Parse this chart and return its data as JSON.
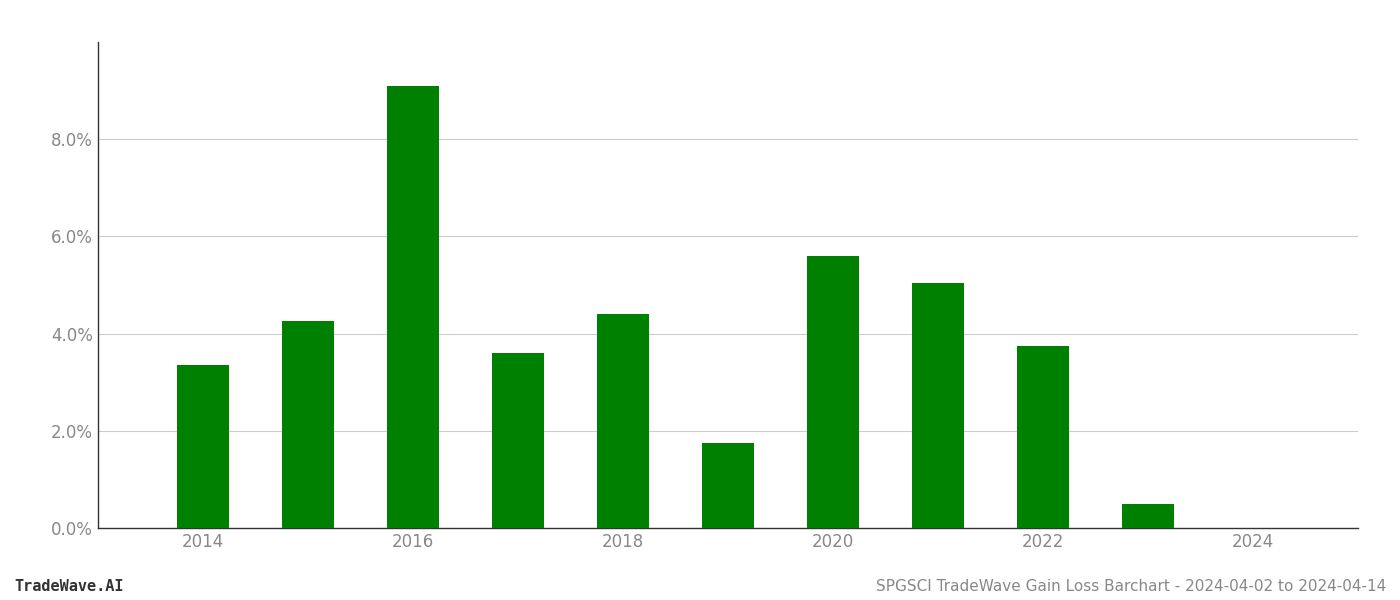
{
  "years": [
    2014,
    2015,
    2016,
    2017,
    2018,
    2019,
    2020,
    2021,
    2022,
    2023,
    2024
  ],
  "values": [
    0.0335,
    0.0425,
    0.091,
    0.036,
    0.044,
    0.0175,
    0.056,
    0.0505,
    0.0375,
    0.005,
    0.0
  ],
  "bar_color": "#008000",
  "background_color": "#ffffff",
  "title": "SPGSCI TradeWave Gain Loss Barchart - 2024-04-02 to 2024-04-14",
  "watermark": "TradeWave.AI",
  "ylim_min": 0.0,
  "ylim_max": 0.1,
  "ytick_values": [
    0.0,
    0.02,
    0.04,
    0.06,
    0.08
  ],
  "ytick_labels": [
    "0.0%",
    "2.0%",
    "4.0%",
    "6.0%",
    "8.0%"
  ],
  "xtick_years": [
    2014,
    2016,
    2018,
    2020,
    2022,
    2024
  ],
  "grid_color": "#cccccc",
  "spine_color": "#333333",
  "title_fontsize": 11,
  "watermark_fontsize": 11,
  "tick_label_color": "#888888",
  "bar_width": 0.5
}
